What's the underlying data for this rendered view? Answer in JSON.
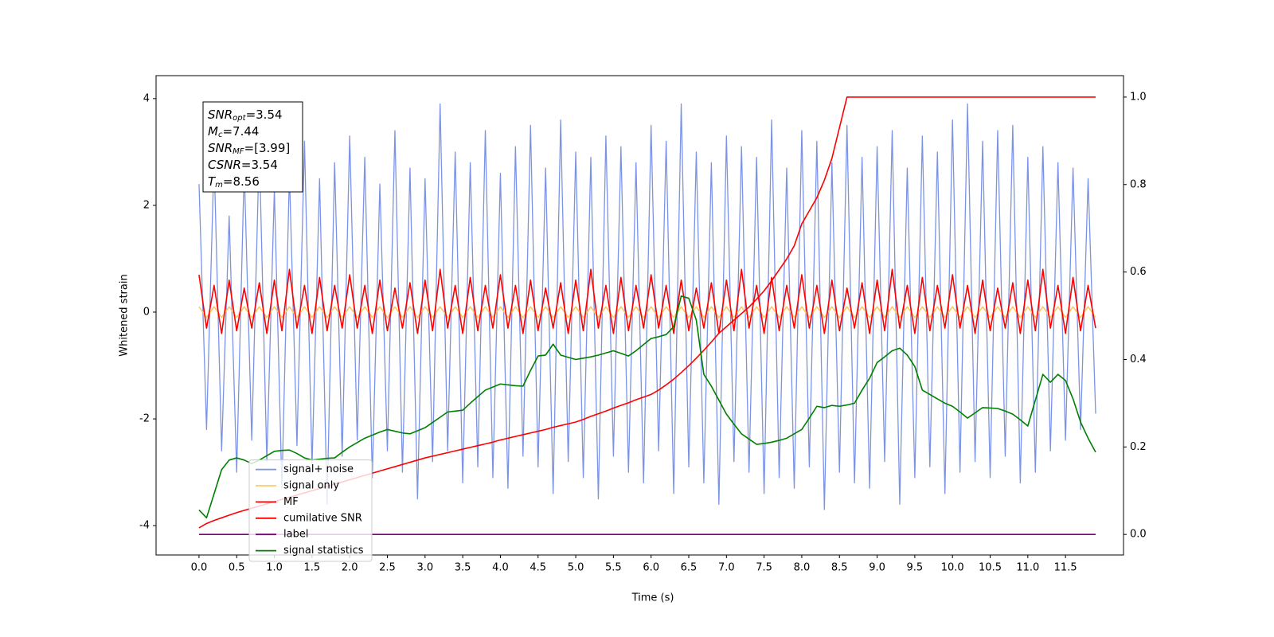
{
  "chart_data": {
    "type": "line",
    "xlabel": "Time (s)",
    "ylabel": "Whitened strain",
    "legend": "lower left",
    "xlim": [
      -0.57,
      12.27
    ],
    "ylim": [
      -4.55,
      4.43
    ],
    "y2lim": [
      -0.047,
      1.049
    ],
    "xticks": [
      {
        "value": 0,
        "label": "0.0"
      },
      0.5,
      {
        "value": 1,
        "label": "1.0"
      },
      1.5,
      {
        "value": 2,
        "label": "2.0"
      },
      2.5,
      {
        "value": 3,
        "label": "3.0"
      },
      3.5,
      {
        "value": 4,
        "label": "4.0"
      },
      4.5,
      {
        "value": 5,
        "label": "5.0"
      },
      5.5,
      {
        "value": 6,
        "label": "6.0"
      },
      6.5,
      {
        "value": 7,
        "label": "7.0"
      },
      7.5,
      {
        "value": 8,
        "label": "8.0"
      },
      8.5,
      {
        "value": 9,
        "label": "9.0"
      },
      9.5,
      {
        "value": 10,
        "label": "10.0"
      },
      10.5,
      {
        "value": 11,
        "label": "11.0"
      },
      11.5
    ],
    "yticks": [
      -4,
      -2,
      0,
      2,
      4
    ],
    "y2ticks": [
      {
        "value": 0,
        "label": "0.0"
      },
      0.2,
      0.4,
      0.6,
      0.8,
      {
        "value": 1,
        "label": "1.0"
      }
    ],
    "annotations": [
      {
        "name": "SNR",
        "sub": "opt",
        "text": "=3.54"
      },
      {
        "name": "M",
        "sub": "c",
        "text": "=7.44"
      },
      {
        "name": "SNR",
        "sub": "MF",
        "text": "=[3.99]"
      },
      {
        "name": "CSNR",
        "text": "=3.54"
      },
      {
        "name": "T",
        "sub": "m",
        "text": "=8.56"
      }
    ],
    "x": [
      0.0,
      0.1,
      0.2,
      0.3,
      0.4,
      0.5,
      0.6,
      0.7,
      0.8,
      0.9,
      1.0,
      1.1,
      1.2,
      1.3,
      1.4,
      1.5,
      1.6,
      1.7,
      1.8,
      1.9,
      2.0,
      2.1,
      2.2,
      2.3,
      2.4,
      2.5,
      2.6,
      2.7,
      2.8,
      2.9,
      3.0,
      3.1,
      3.2,
      3.3,
      3.4,
      3.5,
      3.6,
      3.7,
      3.8,
      3.9,
      4.0,
      4.1,
      4.2,
      4.3,
      4.4,
      4.5,
      4.6,
      4.7,
      4.8,
      4.9,
      5.0,
      5.1,
      5.2,
      5.3,
      5.4,
      5.5,
      5.6,
      5.7,
      5.8,
      5.9,
      6.0,
      6.1,
      6.2,
      6.3,
      6.4,
      6.5,
      6.6,
      6.7,
      6.8,
      6.9,
      7.0,
      7.1,
      7.2,
      7.3,
      7.4,
      7.5,
      7.6,
      7.7,
      7.8,
      7.9,
      8.0,
      8.1,
      8.2,
      8.3,
      8.4,
      8.5,
      8.6,
      8.7,
      8.8,
      8.9,
      9.0,
      9.1,
      9.2,
      9.3,
      9.4,
      9.5,
      9.6,
      9.7,
      9.8,
      9.9,
      10.0,
      10.1,
      10.2,
      10.3,
      10.4,
      10.5,
      10.6,
      10.7,
      10.8,
      10.9,
      11.0,
      11.1,
      11.2,
      11.3,
      11.4,
      11.5,
      11.6,
      11.7,
      11.8,
      11.9
    ],
    "series": [
      {
        "name": "signal+ noise",
        "color": "#7b93e6",
        "values": [
          2.4,
          -2.2,
          2.9,
          -2.6,
          1.8,
          -3.0,
          2.7,
          -2.4,
          3.1,
          -2.8,
          2.3,
          -3.3,
          2.6,
          -2.5,
          3.2,
          -2.9,
          2.5,
          -3.6,
          2.8,
          -2.7,
          3.3,
          -2.4,
          2.9,
          -3.1,
          2.4,
          -2.6,
          3.4,
          -3.0,
          2.7,
          -3.5,
          2.5,
          -2.8,
          3.9,
          -2.6,
          3.0,
          -3.2,
          2.8,
          -2.9,
          3.4,
          -3.1,
          2.6,
          -3.3,
          3.1,
          -2.7,
          3.5,
          -2.9,
          2.7,
          -3.4,
          3.6,
          -2.8,
          3.0,
          -3.1,
          2.9,
          -3.5,
          3.3,
          -2.7,
          3.1,
          -3.0,
          2.8,
          -3.2,
          3.5,
          -2.6,
          3.2,
          -3.4,
          3.9,
          -2.9,
          3.0,
          -3.2,
          2.8,
          -3.6,
          3.3,
          -2.8,
          3.1,
          -3.0,
          2.9,
          -3.4,
          3.6,
          -3.1,
          2.7,
          -3.3,
          3.4,
          -2.9,
          3.2,
          -3.7,
          2.8,
          -3.0,
          3.5,
          -3.2,
          2.9,
          -3.3,
          3.1,
          -2.8,
          3.4,
          -3.6,
          2.7,
          -3.1,
          3.3,
          -2.9,
          3.0,
          -3.4,
          3.6,
          -3.0,
          3.9,
          -2.8,
          3.2,
          -3.1,
          3.4,
          -2.7,
          3.5,
          -3.2,
          2.9,
          -3.0,
          3.1,
          -2.6,
          2.8,
          -2.4,
          2.7,
          -2.2,
          2.5,
          -1.9
        ]
      },
      {
        "name": "signal only",
        "color": "#ffc966",
        "values": [
          0.1,
          -0.1,
          0.1,
          -0.1,
          0.1,
          -0.1,
          0.1,
          -0.1,
          0.1,
          -0.1,
          0.1,
          -0.1,
          0.1,
          -0.1,
          0.1,
          -0.1,
          0.1,
          -0.1,
          0.1,
          -0.1,
          0.1,
          -0.1,
          0.1,
          -0.1,
          0.1,
          -0.1,
          0.1,
          -0.1,
          0.1,
          -0.1,
          0.1,
          -0.1,
          0.1,
          -0.1,
          0.1,
          -0.1,
          0.1,
          -0.1,
          0.1,
          -0.1,
          0.1,
          -0.1,
          0.1,
          -0.1,
          0.1,
          -0.1,
          0.1,
          -0.1,
          0.1,
          -0.1,
          0.1,
          -0.1,
          0.1,
          -0.1,
          0.1,
          -0.1,
          0.1,
          -0.1,
          0.1,
          -0.1,
          0.1,
          -0.1,
          0.1,
          -0.1,
          0.1,
          -0.1,
          0.1,
          -0.1,
          0.1,
          -0.1,
          0.1,
          -0.1,
          0.1,
          -0.1,
          0.1,
          -0.1,
          0.1,
          -0.1,
          0.1,
          -0.1,
          0.1,
          -0.1,
          0.1,
          -0.1,
          0.1,
          -0.1,
          0.1,
          -0.1,
          0.1,
          -0.1,
          0.1,
          -0.1,
          0.1,
          -0.1,
          0.1,
          -0.1,
          0.1,
          -0.1,
          0.1,
          -0.1,
          0.1,
          -0.1,
          0.1,
          -0.1,
          0.1,
          -0.1,
          0.1,
          -0.1,
          0.1,
          -0.1,
          0.1,
          -0.1,
          0.1,
          -0.1,
          0.1,
          -0.1,
          0.1,
          -0.1,
          0.1,
          -0.1
        ]
      },
      {
        "name": "MF",
        "color": "#ff0000",
        "values": [
          0.7,
          -0.3,
          0.5,
          -0.4,
          0.6,
          -0.35,
          0.45,
          -0.3,
          0.55,
          -0.4,
          0.6,
          -0.35,
          0.8,
          -0.3,
          0.5,
          -0.4,
          0.65,
          -0.35,
          0.5,
          -0.3,
          0.7,
          -0.3,
          0.5,
          -0.4,
          0.6,
          -0.35,
          0.45,
          -0.3,
          0.55,
          -0.4,
          0.6,
          -0.35,
          0.8,
          -0.3,
          0.5,
          -0.4,
          0.65,
          -0.35,
          0.5,
          -0.3,
          0.7,
          -0.3,
          0.5,
          -0.4,
          0.6,
          -0.35,
          0.45,
          -0.3,
          0.55,
          -0.4,
          0.6,
          -0.35,
          0.8,
          -0.3,
          0.5,
          -0.4,
          0.65,
          -0.35,
          0.5,
          -0.3,
          0.7,
          -0.3,
          0.5,
          -0.4,
          0.6,
          -0.35,
          0.45,
          -0.3,
          0.55,
          -0.4,
          0.6,
          -0.35,
          0.8,
          -0.3,
          0.5,
          -0.4,
          0.65,
          -0.35,
          0.5,
          -0.3,
          0.7,
          -0.3,
          0.5,
          -0.4,
          0.6,
          -0.35,
          0.45,
          -0.3,
          0.55,
          -0.4,
          0.6,
          -0.35,
          0.8,
          -0.3,
          0.5,
          -0.4,
          0.65,
          -0.35,
          0.5,
          -0.3,
          0.7,
          -0.3,
          0.5,
          -0.4,
          0.6,
          -0.35,
          0.45,
          -0.3,
          0.55,
          -0.4,
          0.6,
          -0.35,
          0.8,
          -0.3,
          0.5,
          -0.4,
          0.65,
          -0.35,
          0.5,
          -0.3
        ]
      },
      {
        "name": "cumilative SNR",
        "color": "#ff0000",
        "axis": "y2",
        "values": [
          0.015,
          0.025,
          0.032,
          0.038,
          0.044,
          0.05,
          0.055,
          0.06,
          0.065,
          0.07,
          0.075,
          0.08,
          0.085,
          0.09,
          0.095,
          0.1,
          0.105,
          0.11,
          0.115,
          0.12,
          0.125,
          0.13,
          0.135,
          0.14,
          0.145,
          0.15,
          0.155,
          0.16,
          0.165,
          0.17,
          0.175,
          0.179,
          0.183,
          0.187,
          0.191,
          0.195,
          0.199,
          0.203,
          0.207,
          0.211,
          0.216,
          0.22,
          0.224,
          0.228,
          0.232,
          0.236,
          0.24,
          0.245,
          0.249,
          0.253,
          0.257,
          0.263,
          0.27,
          0.276,
          0.282,
          0.289,
          0.295,
          0.301,
          0.308,
          0.314,
          0.32,
          0.33,
          0.342,
          0.355,
          0.37,
          0.386,
          0.403,
          0.421,
          0.44,
          0.46,
          0.475,
          0.49,
          0.505,
          0.52,
          0.538,
          0.557,
          0.58,
          0.605,
          0.63,
          0.66,
          0.71,
          0.74,
          0.77,
          0.81,
          0.86,
          0.93,
          1.0,
          1.0,
          1.0,
          1.0,
          1.0,
          1.0,
          1.0,
          1.0,
          1.0,
          1.0,
          1.0,
          1.0,
          1.0,
          1.0,
          1.0,
          1.0,
          1.0,
          1.0,
          1.0,
          1.0,
          1.0,
          1.0,
          1.0,
          1.0,
          1.0,
          1.0,
          1.0,
          1.0,
          1.0,
          1.0,
          1.0,
          1.0,
          1.0,
          1.0
        ]
      },
      {
        "name": "label",
        "color": "#800080",
        "axis": "y2",
        "values": [
          0,
          0,
          0,
          0,
          0,
          0,
          0,
          0,
          0,
          0,
          0,
          0,
          0,
          0,
          0,
          0,
          0,
          0,
          0,
          0,
          0,
          0,
          0,
          0,
          0,
          0,
          0,
          0,
          0,
          0,
          0,
          0,
          0,
          0,
          0,
          0,
          0,
          0,
          0,
          0,
          0,
          0,
          0,
          0,
          0,
          0,
          0,
          0,
          0,
          0,
          0,
          0,
          0,
          0,
          0,
          0,
          0,
          0,
          0,
          0,
          0,
          0,
          0,
          0,
          0,
          0,
          0,
          0,
          0,
          0,
          0,
          0,
          0,
          0,
          0,
          0,
          0,
          0,
          0,
          0,
          0,
          0,
          0,
          0,
          0,
          0,
          0,
          0,
          0,
          0,
          0,
          0,
          0,
          0,
          0,
          0,
          0,
          0,
          0,
          0,
          0,
          0,
          0,
          0,
          0,
          0,
          0,
          0,
          0,
          0,
          0,
          0,
          0,
          0,
          0,
          0,
          0,
          0,
          0,
          0
        ]
      },
      {
        "name": "signal statistics",
        "color": "#008000",
        "axis": "y2",
        "values": [
          0.056,
          0.038,
          0.093,
          0.148,
          0.17,
          0.175,
          0.17,
          0.162,
          0.17,
          0.18,
          0.19,
          0.192,
          0.193,
          0.185,
          0.175,
          0.17,
          0.172,
          0.174,
          0.175,
          0.188,
          0.2,
          0.21,
          0.22,
          0.227,
          0.234,
          0.24,
          0.236,
          0.232,
          0.23,
          0.237,
          0.244,
          0.256,
          0.268,
          0.28,
          0.282,
          0.284,
          0.3,
          0.315,
          0.33,
          0.337,
          0.344,
          0.342,
          0.34,
          0.339,
          0.375,
          0.408,
          0.41,
          0.435,
          0.41,
          0.405,
          0.4,
          0.403,
          0.406,
          0.41,
          0.415,
          0.42,
          0.414,
          0.408,
          0.42,
          0.434,
          0.448,
          0.452,
          0.457,
          0.475,
          0.545,
          0.54,
          0.49,
          0.366,
          0.339,
          0.307,
          0.275,
          0.252,
          0.23,
          0.218,
          0.206,
          0.208,
          0.211,
          0.215,
          0.22,
          0.23,
          0.24,
          0.266,
          0.293,
          0.29,
          0.295,
          0.293,
          0.296,
          0.3,
          0.33,
          0.357,
          0.393,
          0.406,
          0.42,
          0.426,
          0.41,
          0.384,
          0.33,
          0.32,
          0.31,
          0.3,
          0.293,
          0.28,
          0.266,
          0.278,
          0.29,
          0.289,
          0.288,
          0.282,
          0.275,
          0.262,
          0.248,
          0.307,
          0.366,
          0.348,
          0.366,
          0.352,
          0.31,
          0.257,
          0.22,
          0.188
        ]
      }
    ]
  }
}
